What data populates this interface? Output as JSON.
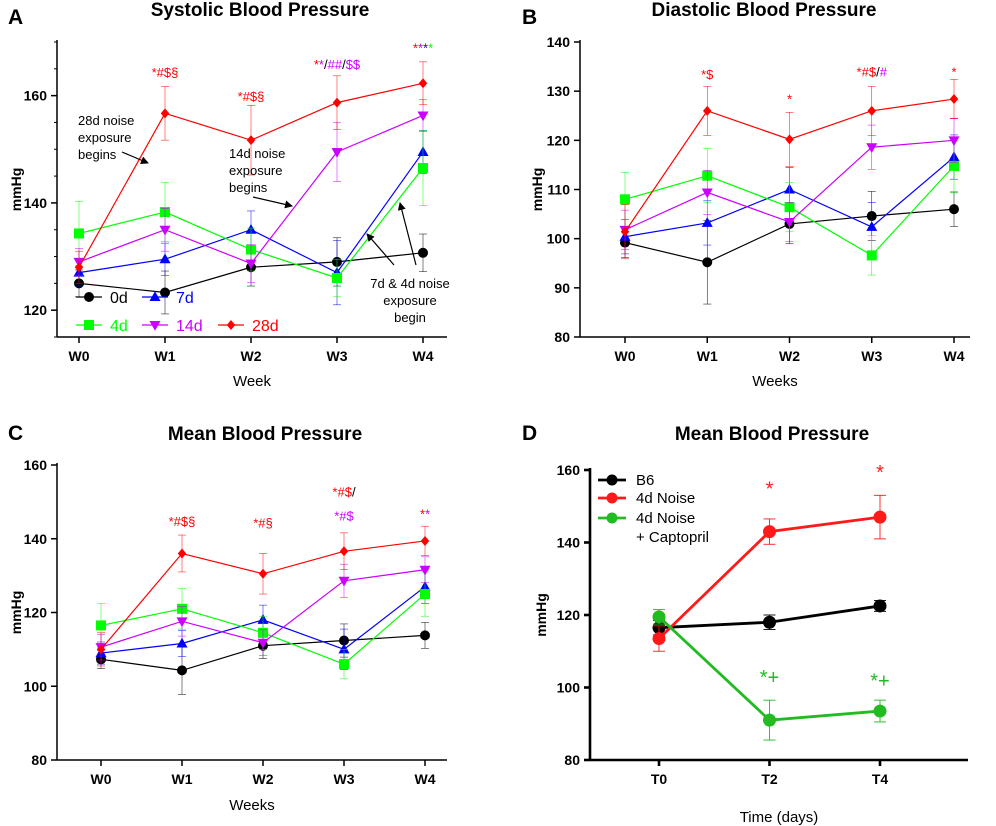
{
  "chart_data": [
    {
      "panel": "A",
      "type": "line",
      "title": "Systolic Blood Pressure",
      "xlabel": "Week",
      "ylabel": "mmHg",
      "categories": [
        "W0",
        "W1",
        "W2",
        "W3",
        "W4"
      ],
      "ylim": [
        115,
        170
      ],
      "yticks": [
        120,
        140,
        160
      ],
      "series": [
        {
          "name": "0d",
          "color": "#000000",
          "marker": "circle",
          "values": [
            125,
            123.3,
            128,
            129,
            130.7
          ],
          "err": [
            2.5,
            4,
            3.5,
            4.5,
            3.5
          ]
        },
        {
          "name": "7d",
          "color": "#0000ff",
          "marker": "triangle-up",
          "values": [
            127,
            129.5,
            135,
            127,
            149.5
          ],
          "err": [
            2.5,
            3,
            3.5,
            6,
            4
          ]
        },
        {
          "name": "4d",
          "color": "#00ff00",
          "marker": "square",
          "values": [
            134.3,
            138.3,
            131.3,
            126,
            146.5
          ],
          "err": [
            6,
            5.5,
            4,
            3.5,
            7
          ]
        },
        {
          "name": "14d",
          "color": "#cc00ff",
          "marker": "triangle-down",
          "values": [
            129,
            135,
            128.7,
            149.5,
            156.3
          ],
          "err": [
            2.5,
            4,
            3.5,
            5.5,
            3
          ]
        },
        {
          "name": "28d",
          "color": "#ff0000",
          "marker": "diamond",
          "values": [
            128,
            156.7,
            151.7,
            158.7,
            162.3
          ],
          "err": [
            3,
            5,
            6.5,
            5,
            4
          ]
        }
      ],
      "legend": [
        {
          "label": "0d",
          "color": "#000000",
          "marker": "circle"
        },
        {
          "label": "7d",
          "color": "#0000ff",
          "marker": "triangle-up"
        },
        {
          "label": "4d",
          "color": "#00ff00",
          "marker": "square"
        },
        {
          "label": "14d",
          "color": "#cc00ff",
          "marker": "triangle-down"
        },
        {
          "label": "28d",
          "color": "#ff0000",
          "marker": "diamond"
        }
      ],
      "significance": [
        {
          "xi": 1,
          "y": 163.5,
          "parts": [
            {
              "t": "*#$§",
              "c": "#ff0000"
            }
          ]
        },
        {
          "xi": 2,
          "y": 159,
          "parts": [
            {
              "t": "*#$§",
              "c": "#ff0000"
            }
          ]
        },
        {
          "xi": 3,
          "y": 165,
          "parts": [
            {
              "t": "*",
              "c": "#ff0000"
            },
            {
              "t": "*",
              "c": "#cc00ff"
            },
            {
              "t": "/",
              "c": "#000000"
            },
            {
              "t": "##",
              "c": "#cc00ff"
            },
            {
              "t": "/",
              "c": "#000000"
            },
            {
              "t": "$$",
              "c": "#cc00ff"
            }
          ]
        },
        {
          "xi": 4,
          "y": 168,
          "parts": [
            {
              "t": "*",
              "c": "#ff0000"
            },
            {
              "t": "*",
              "c": "#cc00ff"
            },
            {
              "t": "*",
              "c": "#0000ff"
            },
            {
              "t": "*",
              "c": "#00ff00"
            }
          ]
        }
      ],
      "annotations": [
        {
          "lines": [
            "28d noise",
            "exposure",
            "begins"
          ]
        },
        {
          "lines": [
            "14d noise",
            "exposure",
            "begins"
          ]
        },
        {
          "lines": [
            "7d & 4d noise",
            "exposure",
            "begin"
          ]
        }
      ]
    },
    {
      "panel": "B",
      "type": "line",
      "title": "Diastolic Blood Pressure",
      "xlabel": "Weeks",
      "ylabel": "mmHg",
      "categories": [
        "W0",
        "W1",
        "W2",
        "W3",
        "W4"
      ],
      "ylim": [
        80,
        140
      ],
      "yticks": [
        80,
        90,
        100,
        110,
        120,
        130,
        140
      ],
      "series": [
        {
          "name": "0d",
          "color": "#000000",
          "marker": "circle",
          "values": [
            99.2,
            95.2,
            103,
            104.6,
            106
          ],
          "err": [
            3,
            8.5,
            4,
            5,
            3.5
          ]
        },
        {
          "name": "7d",
          "color": "#0000ff",
          "marker": "triangle-up",
          "values": [
            100.4,
            103.2,
            110,
            102.4,
            116.6
          ],
          "err": [
            3.5,
            4.5,
            4.5,
            5,
            4.5
          ]
        },
        {
          "name": "4d",
          "color": "#00ff00",
          "marker": "square",
          "values": [
            108,
            112.8,
            106.4,
            96.6,
            114.8
          ],
          "err": [
            5.5,
            5.5,
            5,
            4,
            5.5
          ]
        },
        {
          "name": "14d",
          "color": "#cc00ff",
          "marker": "triangle-down",
          "values": [
            101.8,
            109.4,
            103.4,
            118.6,
            120
          ],
          "err": [
            4,
            4.5,
            4,
            4.5,
            4.5
          ]
        },
        {
          "name": "28d",
          "color": "#ff0000",
          "marker": "diamond",
          "values": [
            101.4,
            126,
            120.2,
            126,
            128.4
          ],
          "err": [
            5.5,
            5,
            5.5,
            5,
            4
          ]
        }
      ],
      "significance": [
        {
          "xi": 1,
          "y": 132.5,
          "parts": [
            {
              "t": "*$",
              "c": "#ff0000"
            }
          ]
        },
        {
          "xi": 2,
          "y": 127.5,
          "parts": [
            {
              "t": "*",
              "c": "#ff0000"
            }
          ]
        },
        {
          "xi": 3,
          "y": 133,
          "parts": [
            {
              "t": "*#$",
              "c": "#ff0000"
            },
            {
              "t": "/",
              "c": "#000000"
            },
            {
              "t": "#",
              "c": "#cc00ff"
            }
          ]
        },
        {
          "xi": 4,
          "y": 133,
          "parts": [
            {
              "t": "*",
              "c": "#ff0000"
            }
          ]
        }
      ]
    },
    {
      "panel": "C",
      "type": "line",
      "title": "Mean Blood Pressure",
      "xlabel": "Weeks",
      "ylabel": "mmHg",
      "categories": [
        "W0",
        "W1",
        "W2",
        "W3",
        "W4"
      ],
      "ylim": [
        80,
        160
      ],
      "yticks": [
        80,
        100,
        120,
        140,
        160
      ],
      "series": [
        {
          "name": "0d",
          "color": "#000000",
          "marker": "circle",
          "values": [
            107.3,
            104.3,
            111,
            112.4,
            113.8
          ],
          "err": [
            2.5,
            6.5,
            3.5,
            4.5,
            3.5
          ]
        },
        {
          "name": "7d",
          "color": "#0000ff",
          "marker": "triangle-up",
          "values": [
            109,
            111.6,
            118,
            110,
            127
          ],
          "err": [
            3,
            3.5,
            4,
            5.5,
            4.5
          ]
        },
        {
          "name": "4d",
          "color": "#00ff00",
          "marker": "square",
          "values": [
            116.5,
            121,
            114.5,
            106,
            125
          ],
          "err": [
            6,
            5.5,
            4.5,
            4,
            6
          ]
        },
        {
          "name": "14d",
          "color": "#cc00ff",
          "marker": "triangle-down",
          "values": [
            110.6,
            117.6,
            111.8,
            128.6,
            131.6
          ],
          "err": [
            3.5,
            4,
            3.5,
            4.5,
            3.5
          ]
        },
        {
          "name": "28d",
          "color": "#ff0000",
          "marker": "diamond",
          "values": [
            110,
            136,
            130.5,
            136.6,
            139.4
          ],
          "err": [
            4.5,
            5,
            5.5,
            5,
            4
          ]
        }
      ],
      "significance": [
        {
          "xi": 1,
          "y": 143.5,
          "parts": [
            {
              "t": "*#$§",
              "c": "#ff0000"
            }
          ]
        },
        {
          "xi": 2,
          "y": 143,
          "parts": [
            {
              "t": "*#§",
              "c": "#ff0000"
            }
          ]
        },
        {
          "xi": 3,
          "y": 151.5,
          "parts": [
            {
              "t": "*#$",
              "c": "#ff0000"
            },
            {
              "t": "/",
              "c": "#000000"
            }
          ]
        },
        {
          "xi": 3,
          "y": 145,
          "parts": [
            {
              "t": "*#$",
              "c": "#cc00ff"
            }
          ]
        },
        {
          "xi": 4,
          "y": 145.5,
          "parts": [
            {
              "t": "*",
              "c": "#ff0000"
            },
            {
              "t": "*",
              "c": "#cc00ff"
            }
          ]
        }
      ]
    },
    {
      "panel": "D",
      "type": "line",
      "title": "Mean Blood Pressure",
      "xlabel": "Time (days)",
      "ylabel": "mmHg",
      "categories": [
        "T0",
        "T2",
        "T4"
      ],
      "ylim": [
        80,
        160
      ],
      "yticks": [
        80,
        100,
        120,
        140,
        160
      ],
      "series": [
        {
          "name": "B6",
          "color": "#000000",
          "values": [
            116.5,
            118,
            122.5
          ],
          "err": [
            2,
            2,
            1.5
          ]
        },
        {
          "name": "4d Noise",
          "color": "#ff1a1a",
          "values": [
            113.5,
            143,
            147
          ],
          "err": [
            3.5,
            3.5,
            6
          ]
        },
        {
          "name": "4d Noise + Captopril",
          "color": "#22bb22",
          "values": [
            119.5,
            91,
            93.5
          ],
          "err": [
            2,
            5.5,
            3
          ]
        }
      ],
      "legend": [
        {
          "lines": [
            "B6"
          ],
          "color": "#000000"
        },
        {
          "lines": [
            "4d Noise"
          ],
          "color": "#ff1a1a"
        },
        {
          "lines": [
            "4d Noise",
            "+ Captopril"
          ],
          "color": "#22bb22"
        }
      ],
      "significance": [
        {
          "xi": 1,
          "y": 153,
          "parts": [
            {
              "t": "*",
              "c": "#ff1a1a"
            }
          ]
        },
        {
          "xi": 2,
          "y": 157.5,
          "parts": [
            {
              "t": "*",
              "c": "#ff1a1a"
            }
          ]
        },
        {
          "xi": 1,
          "y": 101,
          "parts": [
            {
              "t": "*",
              "c": "#22bb22"
            },
            {
              "t": "+",
              "c": "#22bb22"
            }
          ]
        },
        {
          "xi": 2,
          "y": 100,
          "parts": [
            {
              "t": "*",
              "c": "#22bb22"
            },
            {
              "t": "+",
              "c": "#22bb22"
            }
          ]
        }
      ]
    }
  ]
}
